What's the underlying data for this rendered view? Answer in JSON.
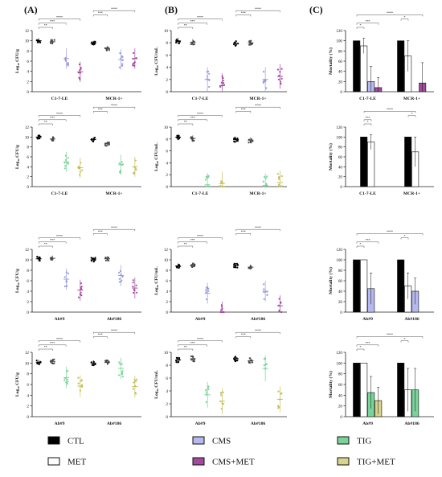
{
  "panel_labels": [
    "(A)",
    "(B)",
    "(C)"
  ],
  "legend": [
    {
      "label": "CTL",
      "color": "#000000"
    },
    {
      "label": "MET",
      "color": "#ffffff"
    },
    {
      "label": "CMS",
      "color": "#b7b8ef"
    },
    {
      "label": "CMS+MET",
      "color": "#a24aa0"
    },
    {
      "label": "TIG",
      "color": "#7ad49a"
    },
    {
      "label": "TIG+MET",
      "color": "#d8d48c"
    }
  ],
  "sig_marks": [
    "*",
    "**",
    "***",
    "****"
  ],
  "chart_data": [
    {
      "id": "A1",
      "type": "scatter",
      "ylabel": "Log₁₀ CFU/g",
      "ylim": [
        0,
        12
      ],
      "yticks": [
        0,
        2,
        4,
        6,
        8,
        10,
        12
      ],
      "categories": [
        "C1-7-LE",
        "MCR-1+"
      ],
      "series": [
        {
          "name": "CTL",
          "color": "#000000",
          "values": [
            10,
            9.5
          ]
        },
        {
          "name": "MET",
          "color": "#444444",
          "values": [
            9.8,
            8.5
          ]
        },
        {
          "name": "CMS",
          "color": "#9a9be0",
          "values": [
            6.5,
            6.3
          ]
        },
        {
          "name": "CMS+MET",
          "color": "#a24aa0",
          "values": [
            3.9,
            6.5
          ]
        }
      ]
    },
    {
      "id": "B1",
      "type": "scatter",
      "ylabel": "Log₁₀ CFU/mL",
      "ylim": [
        0,
        10
      ],
      "yticks": [
        0,
        2,
        4,
        6,
        8,
        10
      ],
      "categories": [
        "C1-7-LE",
        "MCR-1+"
      ],
      "series": [
        {
          "name": "CTL",
          "color": "#000000",
          "values": [
            8.3,
            7.9
          ]
        },
        {
          "name": "MET",
          "color": "#444444",
          "values": [
            8.1,
            8.0
          ]
        },
        {
          "name": "CMS",
          "color": "#9a9be0",
          "values": [
            2.0,
            2.0
          ]
        },
        {
          "name": "CMS+MET",
          "color": "#a24aa0",
          "values": [
            1.0,
            2.5
          ]
        }
      ]
    },
    {
      "id": "C1",
      "type": "bar",
      "ylabel": "Mortality (%)",
      "ylim": [
        0,
        120
      ],
      "yticks": [
        0,
        20,
        40,
        60,
        80,
        100,
        120
      ],
      "categories": [
        "C1-7-LE",
        "MCR-1+"
      ],
      "series": [
        {
          "name": "CTL",
          "color": "#000000",
          "values": [
            100,
            100
          ],
          "err": [
            0,
            0
          ]
        },
        {
          "name": "MET",
          "color": "#ffffff",
          "values": [
            90,
            70
          ],
          "err": [
            15,
            30
          ]
        },
        {
          "name": "CMS",
          "color": "#b7b8ef",
          "values": [
            20,
            0
          ],
          "err": [
            30,
            0
          ]
        },
        {
          "name": "CMS+MET",
          "color": "#a24aa0",
          "values": [
            8,
            17
          ],
          "err": [
            20,
            40
          ]
        }
      ]
    },
    {
      "id": "A2",
      "type": "scatter",
      "ylabel": "Log₁₀ CFU/g",
      "ylim": [
        0,
        12
      ],
      "yticks": [
        0,
        2,
        4,
        6,
        8,
        10,
        12
      ],
      "categories": [
        "C1-7-LE",
        "MCR-1+"
      ],
      "series": [
        {
          "name": "CTL",
          "color": "#000000",
          "values": [
            10,
            9.5
          ]
        },
        {
          "name": "MET",
          "color": "#444444",
          "values": [
            9.6,
            8.6
          ]
        },
        {
          "name": "TIG",
          "color": "#7ad49a",
          "values": [
            5.0,
            4.4
          ]
        },
        {
          "name": "TIG+MET",
          "color": "#c4bf5a",
          "values": [
            3.8,
            4.0
          ]
        }
      ]
    },
    {
      "id": "B2",
      "type": "scatter",
      "ylabel": "Log₁₀ CFU/mL",
      "ylim": [
        0,
        10
      ],
      "yticks": [
        0,
        2,
        4,
        6,
        8,
        10
      ],
      "categories": [
        "C1-7-LE",
        "MCR-1+"
      ],
      "series": [
        {
          "name": "CTL",
          "color": "#000000",
          "values": [
            8.3,
            7.9
          ]
        },
        {
          "name": "MET",
          "color": "#444444",
          "values": [
            8.1,
            7.8
          ]
        },
        {
          "name": "TIG",
          "color": "#7ad49a",
          "values": [
            0.3,
            0.2
          ]
        },
        {
          "name": "TIG+MET",
          "color": "#c4bf5a",
          "values": [
            0.5,
            0.7
          ]
        }
      ]
    },
    {
      "id": "C2",
      "type": "bar",
      "ylabel": "Mortality (%)",
      "ylim": [
        0,
        120
      ],
      "yticks": [
        0,
        20,
        40,
        60,
        80,
        100,
        120
      ],
      "categories": [
        "C1-7-LE",
        "MCR-1+"
      ],
      "series": [
        {
          "name": "CTL",
          "color": "#000000",
          "values": [
            100,
            100
          ],
          "err": [
            0,
            0
          ]
        },
        {
          "name": "MET",
          "color": "#ffffff",
          "values": [
            90,
            70
          ],
          "err": [
            15,
            30
          ]
        }
      ]
    },
    {
      "id": "A3",
      "type": "scatter",
      "ylabel": "Log₁₀ CFU/g",
      "ylim": [
        0,
        12
      ],
      "yticks": [
        0,
        2,
        4,
        6,
        8,
        10,
        12
      ],
      "categories": [
        "Ab#9",
        "Ab#186"
      ],
      "series": [
        {
          "name": "CTL",
          "color": "#000000",
          "values": [
            10.2,
            10.0
          ]
        },
        {
          "name": "MET",
          "color": "#444444",
          "values": [
            10.3,
            10.2
          ]
        },
        {
          "name": "CMS",
          "color": "#9a9be0",
          "values": [
            6.3,
            7.0
          ]
        },
        {
          "name": "CMS+MET",
          "color": "#a24aa0",
          "values": [
            4.2,
            4.6
          ]
        }
      ]
    },
    {
      "id": "B3",
      "type": "scatter",
      "ylabel": "Log₁₀ CFU/mL",
      "ylim": [
        0,
        12
      ],
      "yticks": [
        0,
        2,
        4,
        6,
        8,
        10,
        12
      ],
      "categories": [
        "Ab#9",
        "Ab#186"
      ],
      "series": [
        {
          "name": "CTL",
          "color": "#000000",
          "values": [
            8.8,
            8.9
          ]
        },
        {
          "name": "MET",
          "color": "#444444",
          "values": [
            9.0,
            8.6
          ]
        },
        {
          "name": "CMS",
          "color": "#9a9be0",
          "values": [
            3.6,
            4.0
          ]
        },
        {
          "name": "CMS+MET",
          "color": "#a24aa0",
          "values": [
            0,
            1.2
          ]
        }
      ]
    },
    {
      "id": "C3",
      "type": "bar",
      "ylabel": "Mortality (%)",
      "ylim": [
        0,
        120
      ],
      "yticks": [
        0,
        20,
        40,
        60,
        80,
        100,
        120
      ],
      "categories": [
        "Ab#9",
        "Ab#186"
      ],
      "series": [
        {
          "name": "CTL",
          "color": "#000000",
          "values": [
            100,
            100
          ],
          "err": [
            0,
            0
          ]
        },
        {
          "name": "MET",
          "color": "#ffffff",
          "values": [
            100,
            50
          ],
          "err": [
            0,
            25
          ]
        },
        {
          "name": "CMS",
          "color": "#b7b8ef",
          "values": [
            45,
            40
          ],
          "err": [
            30,
            25
          ]
        },
        {
          "name": "CMS+MET",
          "color": "#a24aa0",
          "values": [
            0,
            0
          ],
          "err": [
            0,
            0
          ]
        }
      ]
    },
    {
      "id": "A4",
      "type": "scatter",
      "ylabel": "Log₁₀ CFU/g",
      "ylim": [
        0,
        12
      ],
      "yticks": [
        0,
        2,
        4,
        6,
        8,
        10,
        12
      ],
      "categories": [
        "Ab#9",
        "Ab#186"
      ],
      "series": [
        {
          "name": "CTL",
          "color": "#000000",
          "values": [
            10.1,
            10.0
          ]
        },
        {
          "name": "MET",
          "color": "#444444",
          "values": [
            10.3,
            10.1
          ]
        },
        {
          "name": "TIG",
          "color": "#7ad49a",
          "values": [
            7.3,
            9.0
          ]
        },
        {
          "name": "TIG+MET",
          "color": "#c4bf5a",
          "values": [
            5.7,
            5.6
          ]
        }
      ]
    },
    {
      "id": "B4",
      "type": "scatter",
      "ylabel": "Log₁₀ CFU/mL",
      "ylim": [
        0,
        10
      ],
      "yticks": [
        0,
        2,
        4,
        6,
        8,
        10
      ],
      "categories": [
        "Ab#9",
        "Ab#186"
      ],
      "series": [
        {
          "name": "CTL",
          "color": "#000000",
          "values": [
            8.8,
            9.0
          ]
        },
        {
          "name": "MET",
          "color": "#444444",
          "values": [
            9.0,
            8.7
          ]
        },
        {
          "name": "TIG",
          "color": "#7ad49a",
          "values": [
            3.4,
            7.5
          ]
        },
        {
          "name": "TIG+MET",
          "color": "#c4bf5a",
          "values": [
            2.4,
            2.7
          ]
        }
      ]
    },
    {
      "id": "C4",
      "type": "bar",
      "ylabel": "Mortality (%)",
      "ylim": [
        0,
        120
      ],
      "yticks": [
        0,
        20,
        40,
        60,
        80,
        100,
        120
      ],
      "categories": [
        "Ab#9",
        "Ab#186"
      ],
      "series": [
        {
          "name": "CTL",
          "color": "#000000",
          "values": [
            100,
            100
          ],
          "err": [
            0,
            0
          ]
        },
        {
          "name": "MET",
          "color": "#ffffff",
          "values": [
            100,
            50
          ],
          "err": [
            0,
            40
          ]
        },
        {
          "name": "TIG",
          "color": "#7ad49a",
          "values": [
            45,
            50
          ],
          "err": [
            30,
            40
          ]
        },
        {
          "name": "TIG+MET",
          "color": "#d8d48c",
          "values": [
            30,
            0
          ],
          "err": [
            25,
            0
          ]
        }
      ]
    }
  ]
}
